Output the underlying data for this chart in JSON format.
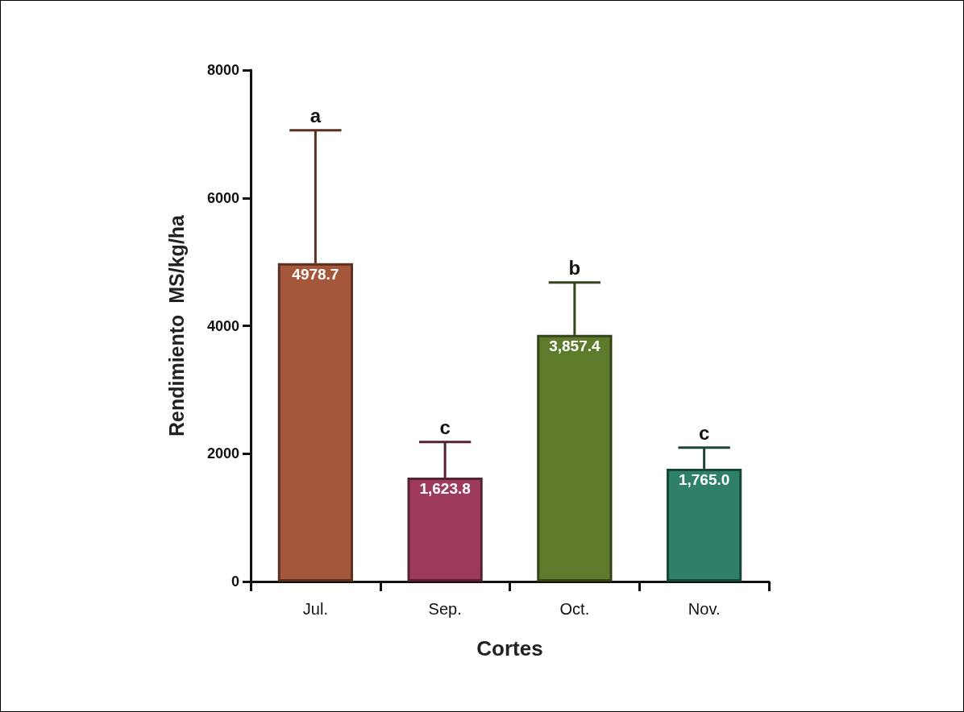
{
  "chart_data": {
    "type": "bar",
    "xlabel": "Cortes",
    "ylabel": "Rendimiento  MS/kg/ha",
    "categories": [
      "Jul.",
      "Sep.",
      "Oct.",
      "Nov."
    ],
    "values": [
      4978.7,
      1623.8,
      3857.4,
      1765.0
    ],
    "colors": [
      "#a5573b",
      "#9e3a5c",
      "#5e7a2b",
      "#2e8068"
    ],
    "errors": [
      2080,
      560,
      820,
      330
    ],
    "value_labels": [
      "4978.7",
      "1,623.8",
      "3,857.4",
      "1,765.0"
    ],
    "annotations": [
      {
        "text": "a",
        "x": "Jul.",
        "y": 7060
      },
      {
        "text": "c",
        "x": "Sep.",
        "y": 2180
      },
      {
        "text": "b",
        "x": "Oct.",
        "y": 4680
      },
      {
        "text": "c",
        "x": "Nov.",
        "y": 2100
      }
    ],
    "ylim": [
      0,
      8000
    ],
    "yticks": [
      0,
      2000,
      4000,
      6000,
      8000
    ],
    "grid": false
  }
}
